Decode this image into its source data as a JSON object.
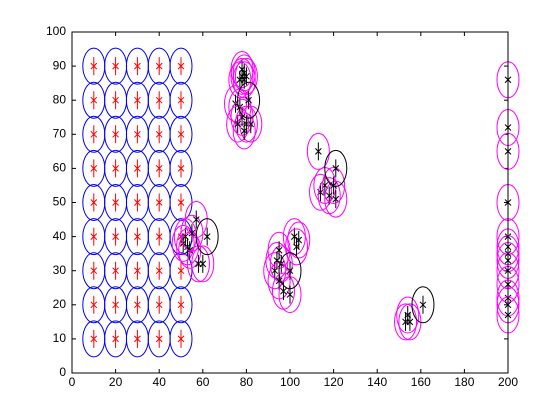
{
  "chart_data": {
    "type": "scatter",
    "xlim": [
      0,
      200
    ],
    "ylim": [
      0,
      100
    ],
    "xticks": [
      0,
      20,
      40,
      60,
      80,
      100,
      120,
      140,
      160,
      180,
      200
    ],
    "yticks": [
      0,
      10,
      20,
      30,
      40,
      50,
      60,
      70,
      80,
      90,
      100
    ],
    "grid": false,
    "series": [
      {
        "color": "#0000ff",
        "marker": "ellipse-cross",
        "cross_color": "#ff0000",
        "x": [
          10,
          10,
          10,
          10,
          10,
          10,
          10,
          10,
          10,
          20,
          20,
          20,
          20,
          20,
          20,
          20,
          20,
          20,
          30,
          30,
          30,
          30,
          30,
          30,
          30,
          30,
          30,
          40,
          40,
          40,
          40,
          40,
          40,
          40,
          40,
          40,
          50,
          50,
          50,
          50,
          50,
          50,
          50,
          50,
          50
        ],
        "values": [
          10,
          20,
          30,
          40,
          50,
          60,
          70,
          80,
          90,
          10,
          20,
          30,
          40,
          50,
          60,
          70,
          80,
          90,
          10,
          20,
          30,
          40,
          50,
          60,
          70,
          80,
          90,
          10,
          20,
          30,
          40,
          50,
          60,
          70,
          80,
          90,
          10,
          20,
          30,
          40,
          50,
          60,
          70,
          80,
          90
        ]
      },
      {
        "color": "#ff00ff",
        "marker": "ellipse-cross",
        "cross_color": "#000000",
        "x": [
          78,
          79,
          77,
          80,
          78,
          79,
          75,
          77,
          78,
          80,
          82,
          76,
          79,
          113,
          116,
          114,
          118,
          121,
          120,
          51,
          52,
          53,
          54,
          55,
          57,
          60,
          58,
          94,
          93,
          96,
          95,
          97,
          102,
          104,
          103,
          100,
          95,
          153,
          155,
          154,
          200,
          200,
          200,
          200,
          200,
          200,
          200,
          200,
          200,
          200,
          200,
          200,
          200
        ],
        "values": [
          87,
          88,
          86,
          87,
          89,
          86,
          79,
          78,
          75,
          73,
          73,
          73,
          71,
          65,
          55,
          53,
          52,
          51,
          55,
          38,
          40,
          37,
          36,
          41,
          45,
          32,
          32,
          33,
          30,
          32,
          27,
          24,
          40,
          39,
          37,
          23,
          36,
          15,
          15,
          17,
          86,
          72,
          65,
          50,
          40,
          37,
          35,
          33,
          30,
          26,
          22,
          20,
          17
        ]
      },
      {
        "color": "#000000",
        "marker": "ellipse-cross",
        "cross_color": "#000000",
        "x": [
          81,
          100,
          121,
          161,
          62
        ],
        "values": [
          80,
          30,
          60,
          20,
          40
        ]
      }
    ]
  }
}
